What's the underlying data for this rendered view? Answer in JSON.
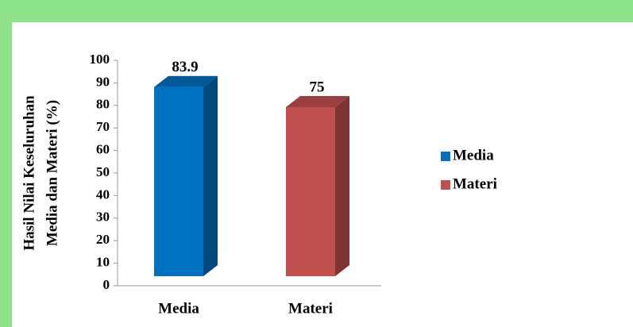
{
  "chart_data": {
    "type": "bar3d",
    "categories": [
      "Media",
      "Materi"
    ],
    "values": [
      83.9,
      75
    ],
    "colors": [
      "#0070c0",
      "#c0504d"
    ],
    "ylabel": [
      "Hasil Nilai Keseluruhan",
      "Media dan Materi (%)"
    ],
    "ylim": [
      0,
      100
    ],
    "yticks": [
      0,
      10,
      20,
      30,
      40,
      50,
      60,
      70,
      80,
      90,
      100
    ],
    "legend_position": "right"
  }
}
